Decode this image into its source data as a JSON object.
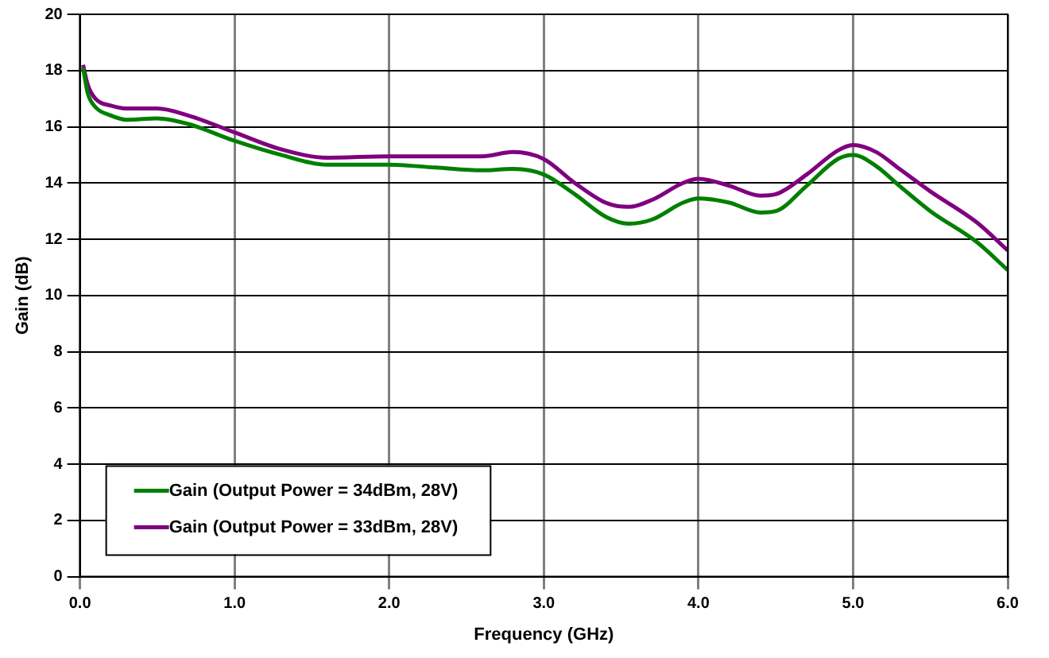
{
  "chart_data": {
    "type": "line",
    "xlabel": "Frequency (GHz)",
    "ylabel": "Gain (dB)",
    "xlim": [
      0,
      6
    ],
    "xticks": [
      {
        "value": 0,
        "label": "0.0"
      },
      {
        "value": 1,
        "label": "1.0"
      },
      {
        "value": 2,
        "label": "2.0"
      },
      {
        "value": 3,
        "label": "3.0"
      },
      {
        "value": 4,
        "label": "4.0"
      },
      {
        "value": 5,
        "label": "5.0"
      },
      {
        "value": 6,
        "label": "6.0"
      }
    ],
    "ylim": [
      0,
      20
    ],
    "yticks": [
      0,
      2,
      4,
      6,
      8,
      10,
      12,
      14,
      16,
      18,
      20
    ],
    "grid": true,
    "legend": "bottom left",
    "marker": "none",
    "line_style": "solid",
    "x": [
      0.02,
      0.05,
      0.1,
      0.2,
      0.3,
      0.5,
      0.7,
      1.0,
      1.3,
      1.6,
      2.0,
      2.3,
      2.6,
      2.8,
      3.0,
      3.2,
      3.4,
      3.55,
      3.7,
      3.9,
      4.0,
      4.2,
      4.4,
      4.5,
      4.7,
      4.9,
      5.0,
      5.15,
      5.3,
      5.5,
      5.8,
      6.0
    ],
    "series": [
      {
        "name": "Gain (Output Power = 34dBm, 28V)",
        "color": "#008000",
        "values": [
          18.1,
          17.2,
          16.7,
          16.4,
          16.25,
          16.3,
          16.1,
          15.5,
          15.0,
          14.65,
          14.65,
          14.55,
          14.45,
          14.5,
          14.3,
          13.6,
          12.8,
          12.55,
          12.7,
          13.3,
          13.45,
          13.3,
          12.95,
          13.0,
          13.9,
          14.85,
          15.0,
          14.6,
          13.9,
          13.0,
          11.9,
          10.9
        ]
      },
      {
        "name": "Gain (Output Power = 33dBm, 28V)",
        "color": "#800080",
        "values": [
          18.2,
          17.5,
          17.0,
          16.75,
          16.65,
          16.65,
          16.4,
          15.8,
          15.2,
          14.9,
          14.95,
          14.95,
          14.95,
          15.1,
          14.85,
          14.0,
          13.3,
          13.15,
          13.4,
          14.0,
          14.15,
          13.9,
          13.55,
          13.6,
          14.3,
          15.15,
          15.35,
          15.1,
          14.5,
          13.7,
          12.6,
          11.6
        ]
      }
    ]
  }
}
